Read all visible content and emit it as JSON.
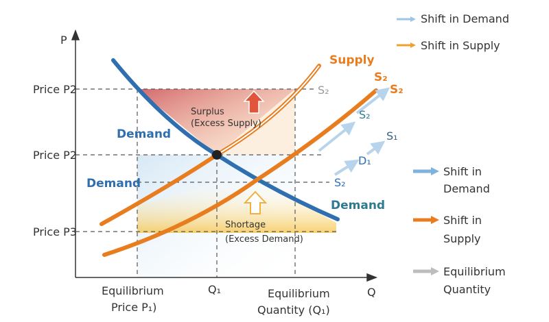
{
  "axes": {
    "y_label": "P",
    "x_label": "Q"
  },
  "price_labels": [
    "Price P2",
    "Price P2",
    "Price P3"
  ],
  "x_ticks": {
    "left": [
      "Equilibrium",
      "Price P₁)"
    ],
    "mid": "Q₁",
    "right": [
      "Equilibrium",
      "Quantity (Q₁)"
    ]
  },
  "curves": {
    "supply": "Supply",
    "s2_top": "S₂",
    "s2_gray": "S₂",
    "s2_arrow": "S₂",
    "s2_teal": "S₂",
    "s1": "S₁",
    "d1": "D₁",
    "s2_low": "S₂",
    "demand_left": "Demand",
    "demand_mid": "Demand",
    "demand_right": "Demand"
  },
  "regions": {
    "surplus": [
      "Surplus",
      "(Excess Supply)"
    ],
    "shortage": [
      "Shortage",
      "(Excess Demand)"
    ]
  },
  "legend_top": [
    {
      "label": "Shift in Demand",
      "color": "#9ec5e3"
    },
    {
      "label": "Shift in Supply",
      "color": "#f0a030"
    }
  ],
  "legend_right": [
    {
      "lines": [
        "Shift in",
        "Demand"
      ],
      "color": "#7fb2dc"
    },
    {
      "lines": [
        "Shift in",
        "Supply"
      ],
      "color": "#e87d20"
    },
    {
      "lines": [
        "Equilibrium",
        "Quantity"
      ],
      "color": "#bdbdbd"
    }
  ],
  "colors": {
    "demand": "#2f6fb0",
    "supply": "#e87d20",
    "surplus": "#d9534f",
    "shortage": "#f6c343"
  }
}
